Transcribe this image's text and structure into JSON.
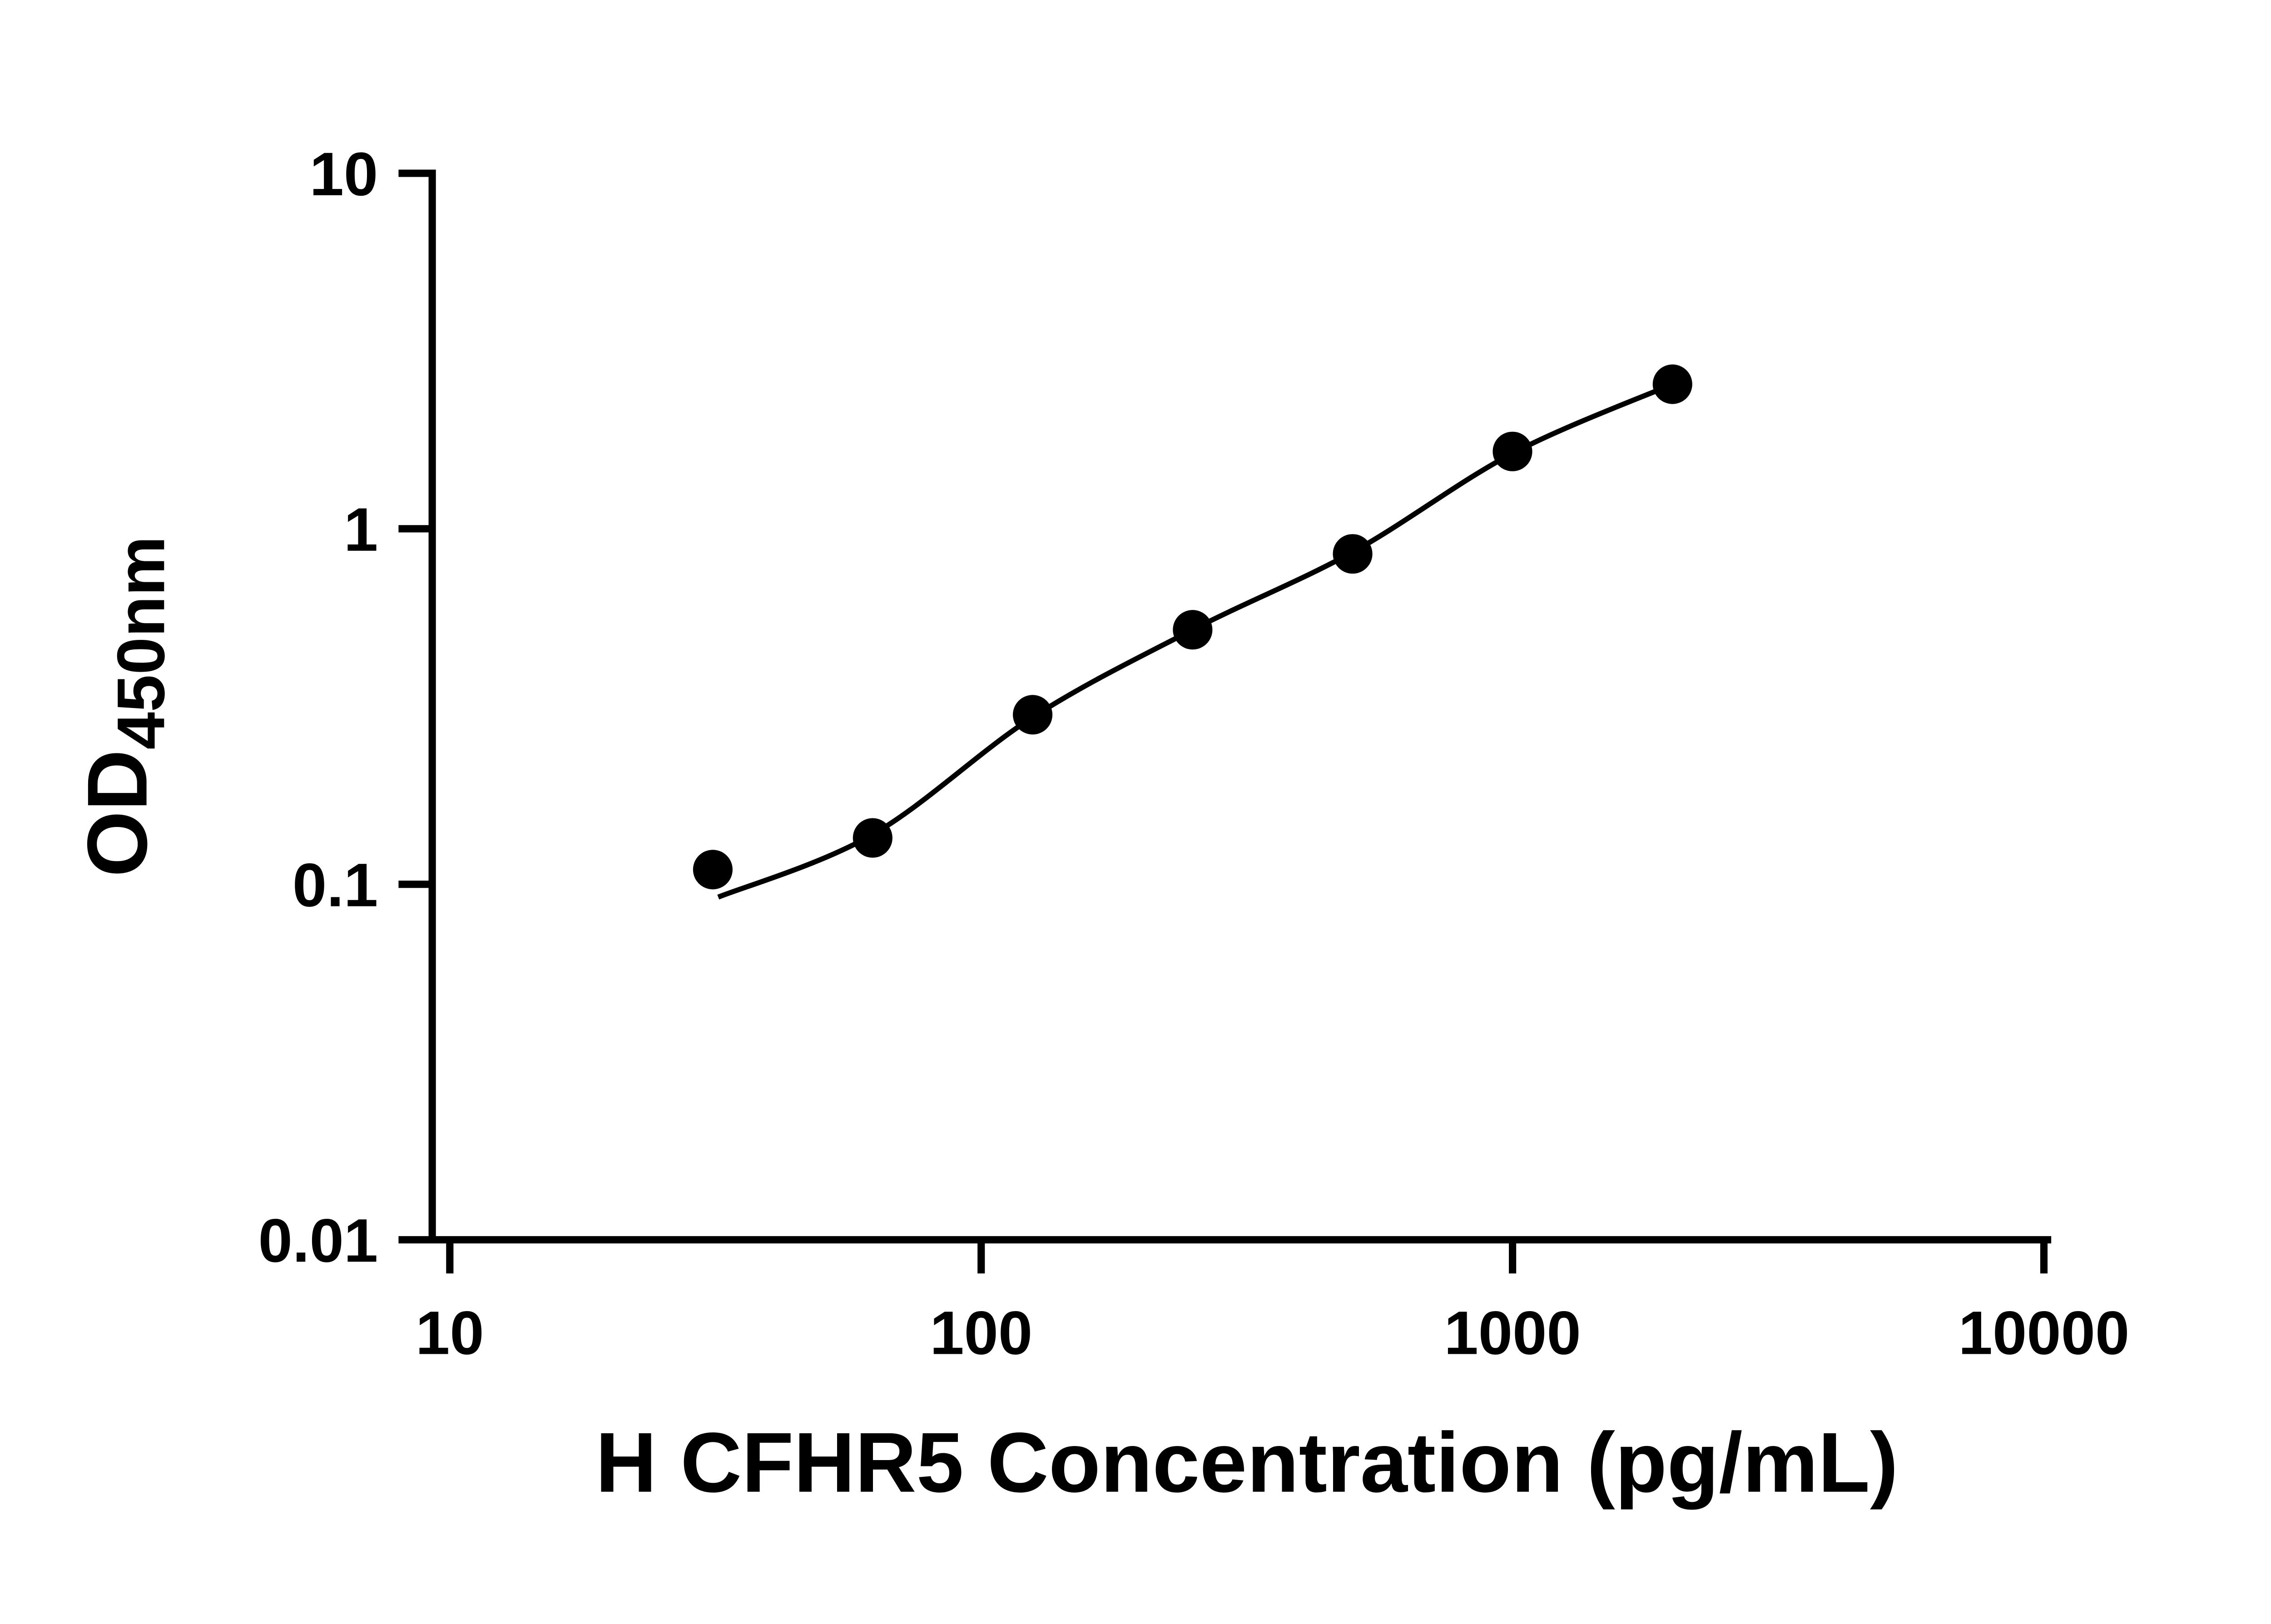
{
  "page": {
    "background_color": "#ffffff"
  },
  "chart_data": {
    "type": "scatter",
    "title": "",
    "xlabel": "H CFHR5 Concentration (pg/mL)",
    "ylabel_main": "OD",
    "ylabel_sub": "450nm",
    "x_scale": "log",
    "y_scale": "log",
    "xlim": [
      10,
      10000
    ],
    "ylim": [
      0.01,
      10
    ],
    "x_ticks": [
      10,
      100,
      1000,
      10000
    ],
    "x_tick_labels": [
      "10",
      "100",
      "1000",
      "10000"
    ],
    "y_ticks": [
      0.01,
      0.1,
      1,
      10
    ],
    "y_tick_labels": [
      "0.01",
      "0.1",
      "1",
      "10"
    ],
    "points": [
      {
        "x": 31.25,
        "y": 0.11
      },
      {
        "x": 62.5,
        "y": 0.135
      },
      {
        "x": 125,
        "y": 0.3
      },
      {
        "x": 250,
        "y": 0.52
      },
      {
        "x": 500,
        "y": 0.85
      },
      {
        "x": 1000,
        "y": 1.65
      },
      {
        "x": 2000,
        "y": 2.55
      }
    ],
    "fit_curve": [
      {
        "x": 32,
        "y": 0.092
      },
      {
        "x": 62.5,
        "y": 0.138
      },
      {
        "x": 125,
        "y": 0.295
      },
      {
        "x": 250,
        "y": 0.52
      },
      {
        "x": 500,
        "y": 0.86
      },
      {
        "x": 1000,
        "y": 1.63
      },
      {
        "x": 2000,
        "y": 2.55
      }
    ],
    "marker_color": "#000000",
    "line_color": "#000000",
    "axis_color": "#000000",
    "grid": false,
    "legend": null
  }
}
